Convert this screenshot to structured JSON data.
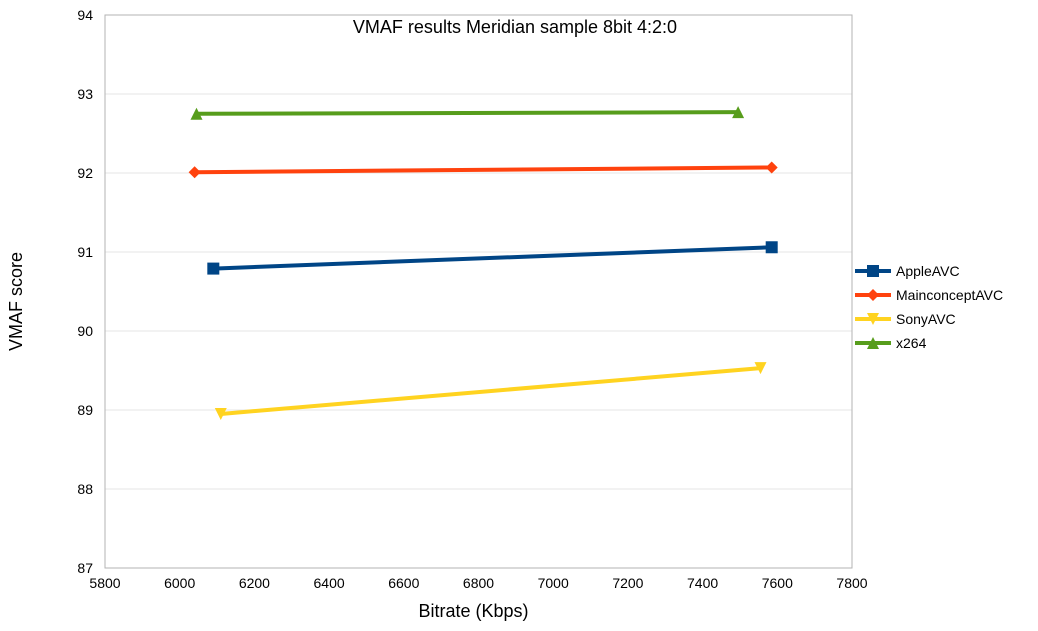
{
  "chart_data": {
    "type": "line",
    "title": "VMAF results Meridian sample 8bit 4:2:0",
    "xlabel": "Bitrate (Kbps)",
    "ylabel": "VMAF score",
    "xlim": [
      5800,
      7800
    ],
    "ylim": [
      87,
      94
    ],
    "xticks": [
      5800,
      6000,
      6200,
      6400,
      6600,
      6800,
      7000,
      7200,
      7400,
      7600,
      7800
    ],
    "yticks": [
      87,
      88,
      89,
      90,
      91,
      92,
      93,
      94
    ],
    "grid": true,
    "legend_position": "right",
    "series": [
      {
        "name": "AppleAVC",
        "color": "#004586",
        "marker": "square",
        "x": [
          6090,
          7585
        ],
        "y": [
          90.79,
          91.06
        ]
      },
      {
        "name": "MainconceptAVC",
        "color": "#ff420e",
        "marker": "diamond",
        "x": [
          6040,
          7585
        ],
        "y": [
          92.01,
          92.07
        ]
      },
      {
        "name": "SonyAVC",
        "color": "#ffd320",
        "marker": "triangle-down",
        "x": [
          6110,
          7555
        ],
        "y": [
          88.95,
          89.53
        ]
      },
      {
        "name": "x264",
        "color": "#579d1c",
        "marker": "triangle-up",
        "x": [
          6045,
          7495
        ],
        "y": [
          92.75,
          92.77
        ]
      }
    ]
  }
}
